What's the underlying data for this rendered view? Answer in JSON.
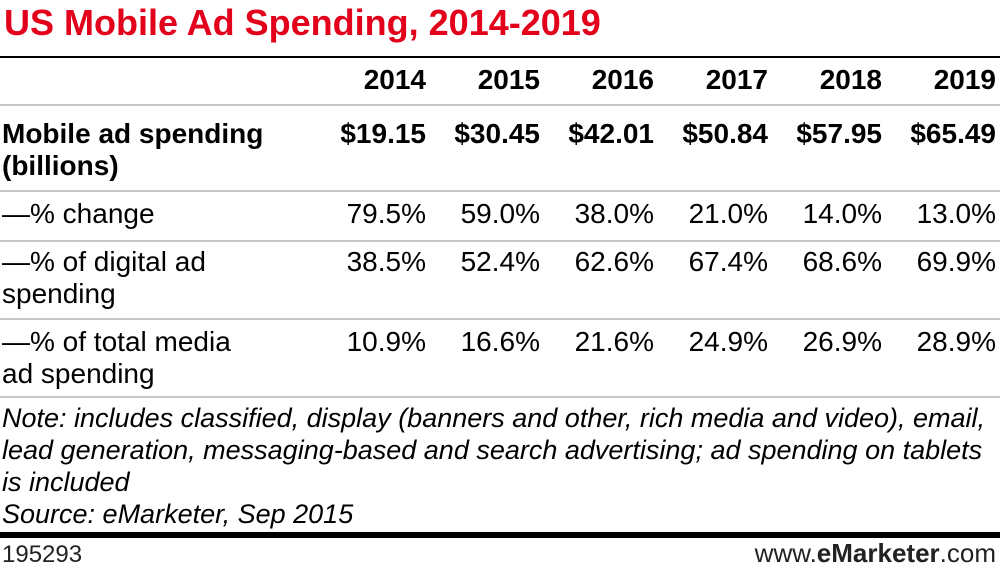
{
  "title": "US Mobile Ad Spending, 2014-2019",
  "chart_data": {
    "type": "table",
    "title": "US Mobile Ad Spending, 2014-2019",
    "columns": [
      "2014",
      "2015",
      "2016",
      "2017",
      "2018",
      "2019"
    ],
    "rows": [
      {
        "label": "Mobile ad spending\n(billions)",
        "bold": true,
        "values": [
          "$19.15",
          "$30.45",
          "$42.01",
          "$50.84",
          "$57.95",
          "$65.49"
        ]
      },
      {
        "label": "—% change",
        "bold": false,
        "values": [
          "79.5%",
          "59.0%",
          "38.0%",
          "21.0%",
          "14.0%",
          "13.0%"
        ]
      },
      {
        "label": "—% of digital ad\nspending",
        "bold": false,
        "values": [
          "38.5%",
          "52.4%",
          "62.6%",
          "67.4%",
          "68.6%",
          "69.9%"
        ]
      },
      {
        "label": "—% of total media\nad spending",
        "bold": false,
        "values": [
          "10.9%",
          "16.6%",
          "21.6%",
          "24.9%",
          "26.9%",
          "28.9%"
        ]
      }
    ]
  },
  "note": "Note: includes classified, display (banners and other, rich media and video), email, lead generation, messaging-based and search advertising; ad spending on tablets is included",
  "source": "Source: eMarketer, Sep 2015",
  "footer": {
    "id": "195293",
    "site_prefix": "www.",
    "site_brand": "eMarketer",
    "site_suffix": ".com"
  },
  "colors": {
    "title": "#e3001b",
    "rule": "#000000",
    "divider": "#c8c8c8"
  }
}
